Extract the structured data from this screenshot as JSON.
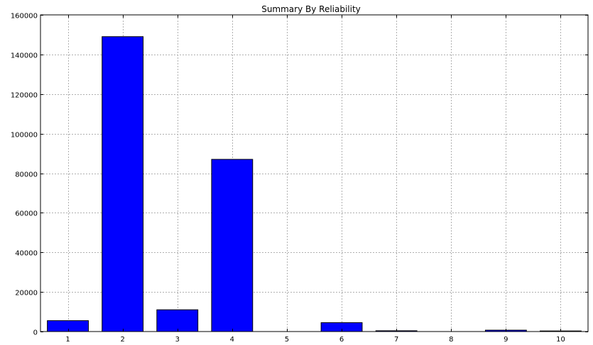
{
  "chart_data": {
    "type": "bar",
    "title": "Summary By Reliability",
    "xlabel": "",
    "ylabel": "",
    "categories": [
      "1",
      "2",
      "3",
      "4",
      "5",
      "6",
      "7",
      "8",
      "9",
      "10"
    ],
    "values": [
      5500,
      149000,
      11000,
      87000,
      0,
      4500,
      400,
      0,
      700,
      300
    ],
    "ylim": [
      0,
      160000
    ],
    "yticks": [
      "0",
      "20000",
      "40000",
      "60000",
      "80000",
      "100000",
      "120000",
      "140000",
      "160000"
    ],
    "grid": true,
    "legend": "none",
    "colors": {
      "bar_fill": "#0000ff",
      "bar_edge": "#000000",
      "grid": "#b0b0b0",
      "axes": "#000000"
    }
  }
}
